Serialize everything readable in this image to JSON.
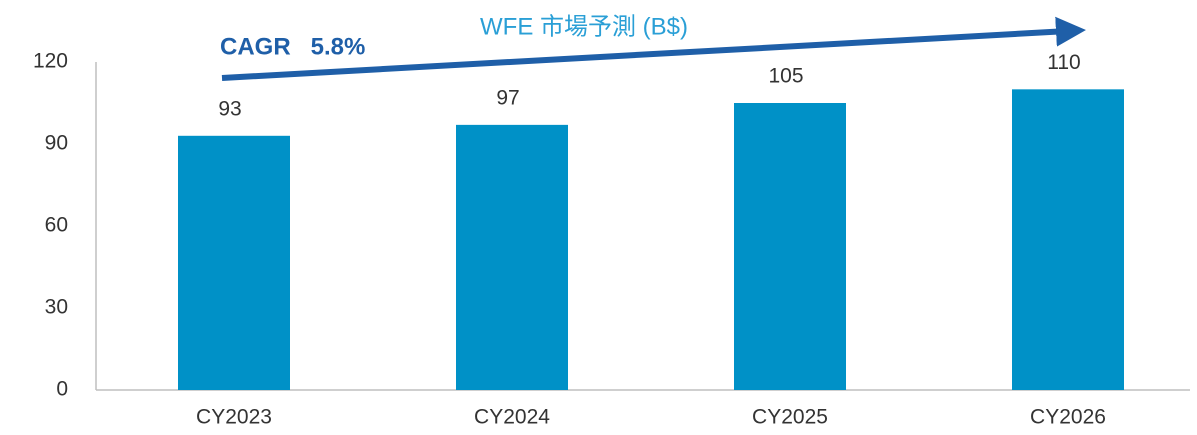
{
  "chart_data": {
    "type": "bar",
    "title": "WFE 市場予測 (B$)",
    "annotation": "CAGR   5.8%",
    "categories": [
      "CY2023",
      "CY2024",
      "CY2025",
      "CY2026"
    ],
    "values": [
      93,
      97,
      105,
      110
    ],
    "color": "#0091c7",
    "ylim": [
      0,
      120
    ],
    "yticks": [
      0,
      30,
      60,
      90,
      120
    ],
    "grid": false
  }
}
